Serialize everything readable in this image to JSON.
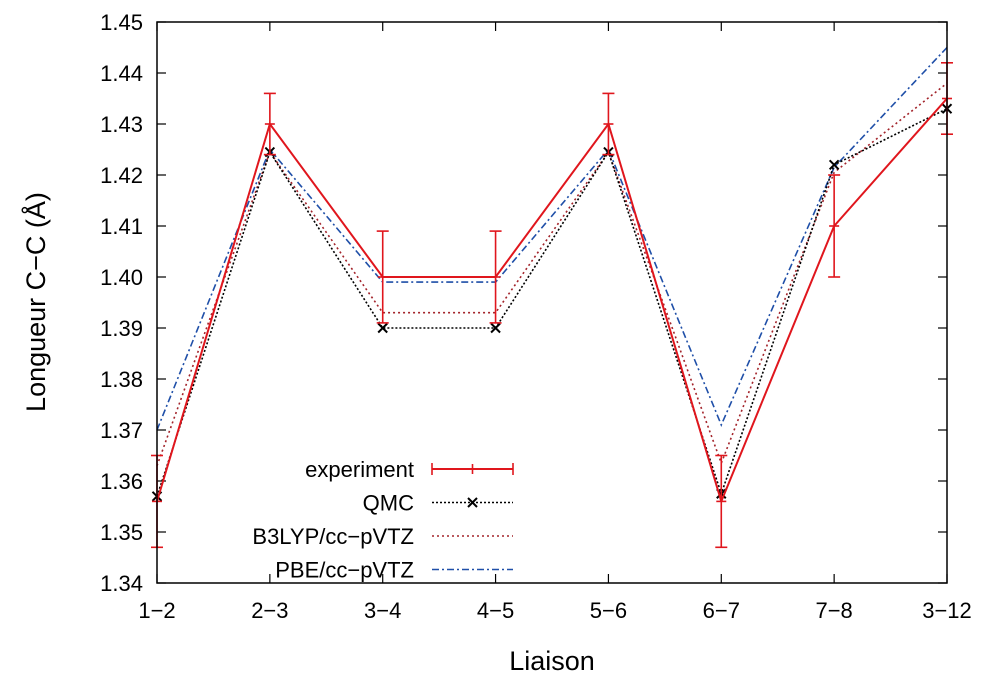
{
  "chart_data": {
    "type": "line",
    "title": "",
    "xlabel": "Liaison",
    "ylabel": "Longueur C−C  (Å)",
    "categories": [
      "1−2",
      "2−3",
      "3−4",
      "4−5",
      "5−6",
      "6−7",
      "7−8",
      "3−12"
    ],
    "ylim": [
      1.34,
      1.45
    ],
    "yticks": [
      "1.34",
      "1.35",
      "1.36",
      "1.37",
      "1.38",
      "1.39",
      "1.40",
      "1.41",
      "1.42",
      "1.43",
      "1.44",
      "1.45"
    ],
    "grid": false,
    "legend_position": "bottom-left",
    "series": [
      {
        "name": "experiment",
        "values": [
          1.356,
          1.43,
          1.4,
          1.4,
          1.43,
          1.356,
          1.41,
          1.435
        ],
        "errors": [
          0.009,
          0.006,
          0.009,
          0.009,
          0.006,
          0.009,
          0.01,
          0.007
        ],
        "color": "#e0161d",
        "dash": "",
        "marker": "plus",
        "style": "errorbar"
      },
      {
        "name": "QMC",
        "values": [
          1.357,
          1.4245,
          1.39,
          1.39,
          1.4245,
          1.3575,
          1.422,
          1.433
        ],
        "color": "#000000",
        "dash": "2,2",
        "marker": "x",
        "style": "linespoints"
      },
      {
        "name": "B3LYP/cc−pVTZ",
        "values": [
          1.363,
          1.4245,
          1.393,
          1.393,
          1.4245,
          1.3635,
          1.4205,
          1.438
        ],
        "color": "#a3232a",
        "dash": "2,3",
        "marker": "",
        "style": "line"
      },
      {
        "name": "PBE/cc−pVTZ",
        "values": [
          1.37,
          1.425,
          1.399,
          1.399,
          1.425,
          1.371,
          1.4215,
          1.445
        ],
        "color": "#1f4fa8",
        "dash": "7,3,2,3",
        "marker": "",
        "style": "line"
      }
    ]
  }
}
